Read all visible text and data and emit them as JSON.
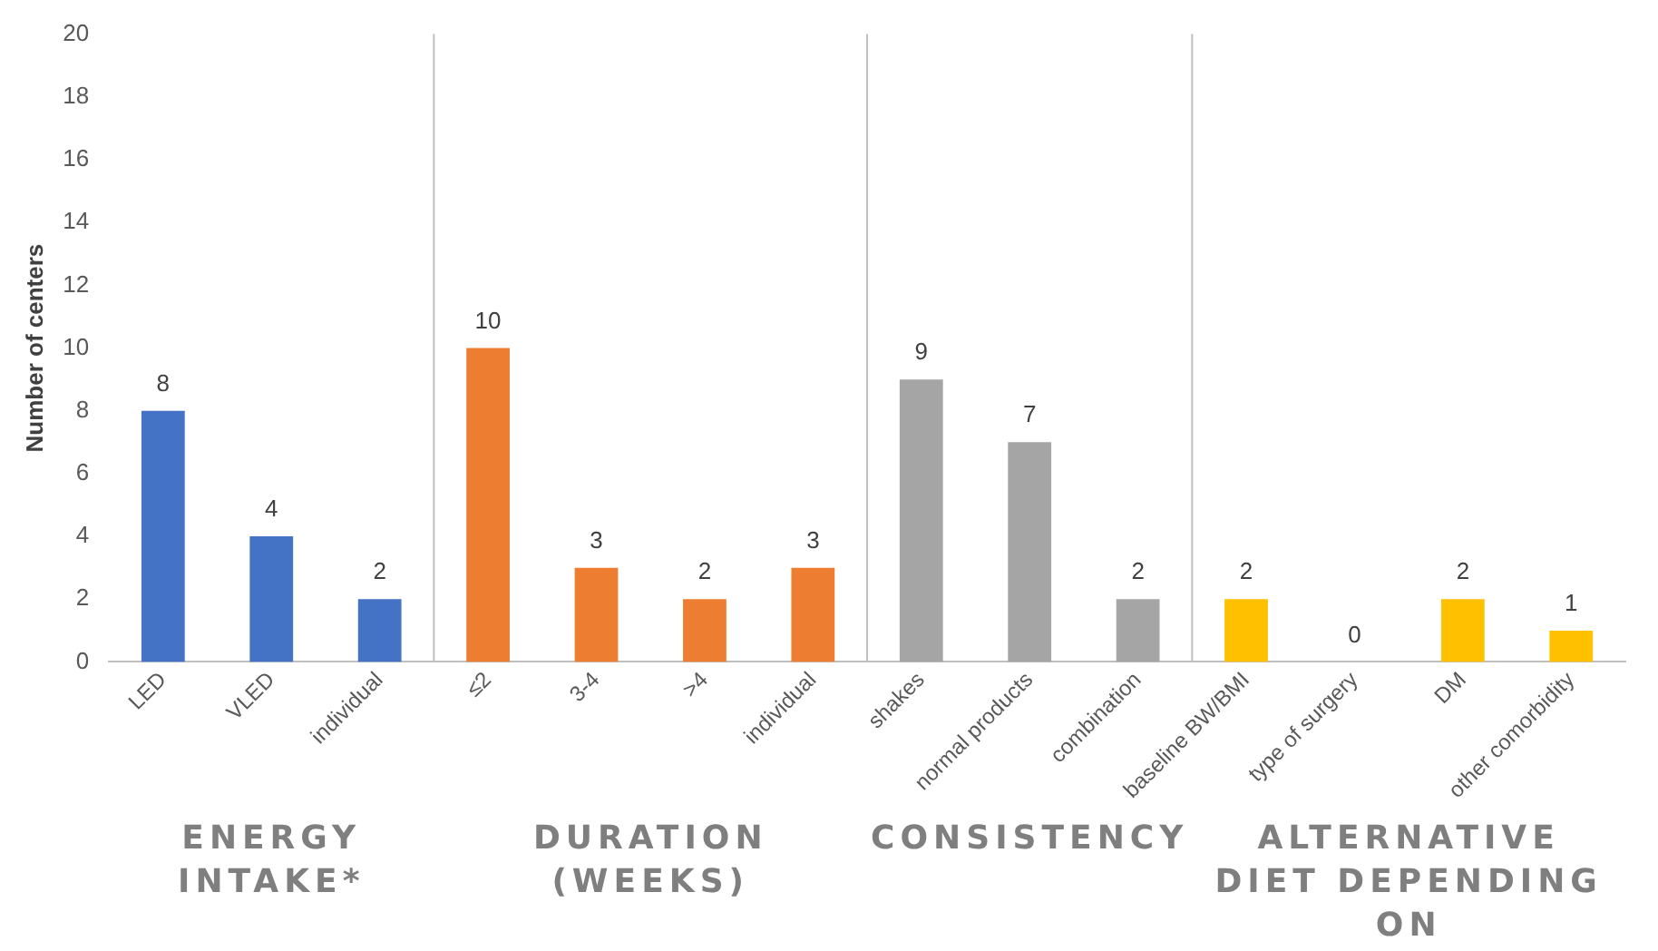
{
  "chart_data": {
    "type": "bar",
    "ylabel": "Number of centers",
    "categories": [
      "LED",
      "VLED",
      "individual",
      "≤2",
      "3-4",
      ">4",
      "individual",
      "shakes",
      "normal products",
      "combination",
      "baseline BW/BMI",
      "type of surgery",
      "DM",
      "other comorbidity"
    ],
    "values": [
      8,
      4,
      2,
      10,
      3,
      2,
      3,
      9,
      7,
      2,
      2,
      0,
      2,
      1
    ],
    "colors": [
      "#4472c4",
      "#4472c4",
      "#4472c4",
      "#ed7d31",
      "#ed7d31",
      "#ed7d31",
      "#ed7d31",
      "#a5a5a5",
      "#a5a5a5",
      "#a5a5a5",
      "#ffc000",
      "#ffc000",
      "#ffc000",
      "#ffc000"
    ],
    "ylim": [
      0,
      20
    ],
    "yticks": [
      0,
      2,
      4,
      6,
      8,
      10,
      12,
      14,
      16,
      18,
      20
    ],
    "grid": false,
    "legend": false,
    "data_labels": true,
    "annotations": [
      "ENERGY INTAKE*",
      "DURATION (WEEKS)",
      "CONSISTENCY",
      "ALTERNATIVE DIET DEPENDING ON"
    ]
  }
}
